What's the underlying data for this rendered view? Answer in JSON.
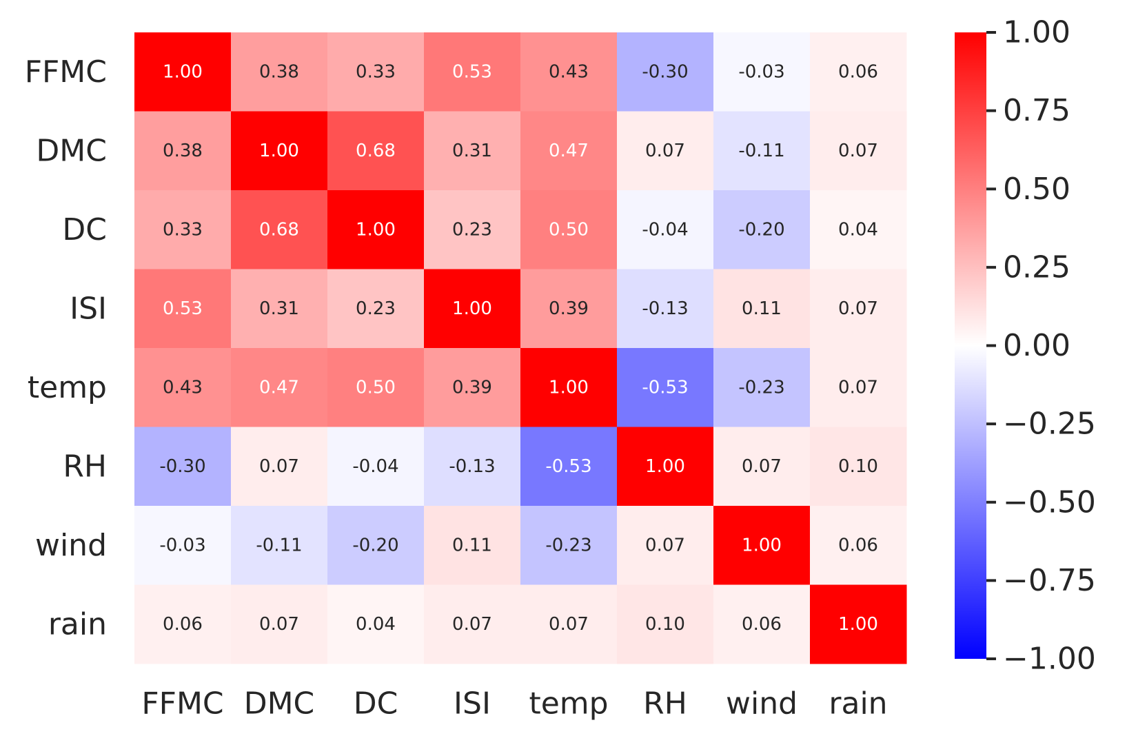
{
  "chart_data": {
    "type": "heatmap",
    "title": "",
    "xlabel": "",
    "ylabel": "",
    "rows": [
      "FFMC",
      "DMC",
      "DC",
      "ISI",
      "temp",
      "RH",
      "wind",
      "rain"
    ],
    "columns": [
      "FFMC",
      "DMC",
      "DC",
      "ISI",
      "temp",
      "RH",
      "wind",
      "rain"
    ],
    "values": [
      [
        1.0,
        0.38,
        0.33,
        0.53,
        0.43,
        -0.3,
        -0.03,
        0.06
      ],
      [
        0.38,
        1.0,
        0.68,
        0.31,
        0.47,
        0.07,
        -0.11,
        0.07
      ],
      [
        0.33,
        0.68,
        1.0,
        0.23,
        0.5,
        -0.04,
        -0.2,
        0.04
      ],
      [
        0.53,
        0.31,
        0.23,
        1.0,
        0.39,
        -0.13,
        0.11,
        0.07
      ],
      [
        0.43,
        0.47,
        0.5,
        0.39,
        1.0,
        -0.53,
        -0.23,
        0.07
      ],
      [
        -0.3,
        0.07,
        -0.04,
        -0.13,
        -0.53,
        1.0,
        0.07,
        0.1
      ],
      [
        -0.03,
        -0.11,
        -0.2,
        0.11,
        -0.23,
        0.07,
        1.0,
        0.06
      ],
      [
        0.06,
        0.07,
        0.04,
        0.07,
        0.07,
        0.1,
        0.06,
        1.0
      ]
    ],
    "value_format": "0.00",
    "colormap": "bwr",
    "colors": {
      "low": "#0000ff",
      "mid": "#ffffff",
      "high": "#ff0000",
      "text_dark": "#262626",
      "text_light": "#ffffff"
    },
    "colorbar": {
      "range": [
        -1.0,
        1.0
      ],
      "ticks": [
        1.0,
        0.75,
        0.5,
        0.25,
        0.0,
        -0.25,
        -0.5,
        -0.75,
        -1.0
      ],
      "tick_labels": [
        "1.00",
        "0.75",
        "0.50",
        "0.25",
        "0.00",
        "−0.25",
        "−0.50",
        "−0.75",
        "−1.00"
      ],
      "placement": "right"
    },
    "grid": false
  }
}
